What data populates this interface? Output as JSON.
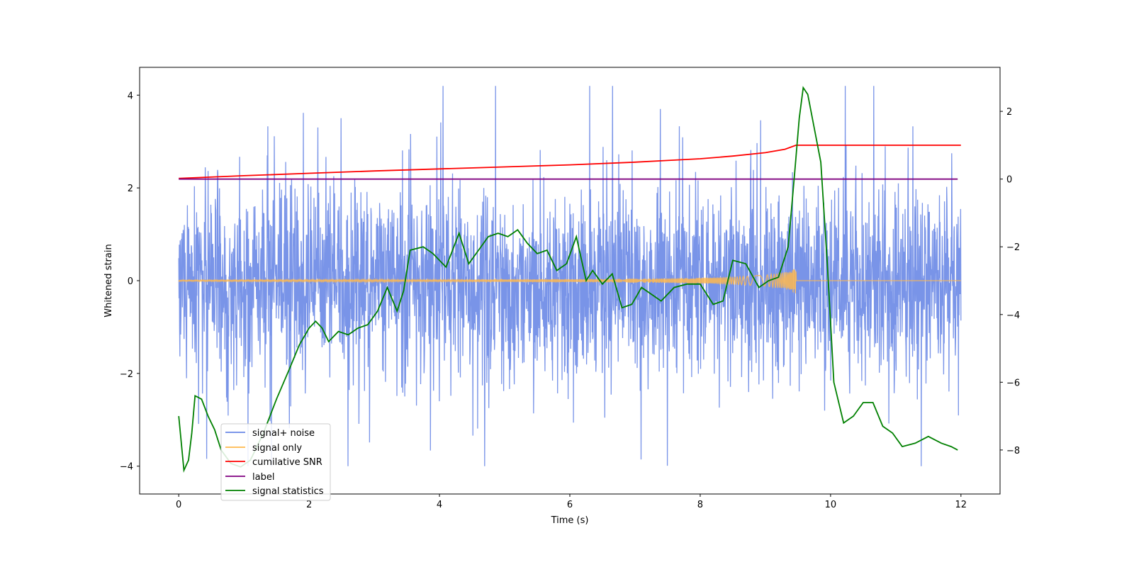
{
  "chart_data": {
    "type": "line",
    "title": "",
    "xlabel": "Time (s)",
    "ylabel": "Whitened strain",
    "y2label": "",
    "xlim": [
      -0.6,
      12.6
    ],
    "ylim": [
      -4.6,
      4.6
    ],
    "y2lim": [
      -9.3,
      3.3
    ],
    "grid": false,
    "legend_position": "lower-left",
    "x_ticks": [
      0,
      2,
      4,
      6,
      8,
      10,
      12
    ],
    "y_ticks": [
      -4,
      -2,
      0,
      2,
      4
    ],
    "y2_ticks": [
      -8,
      -6,
      -4,
      -2,
      0,
      2
    ],
    "x_tick_labels": [
      "0",
      "2",
      "4",
      "6",
      "8",
      "10",
      "12"
    ],
    "y_tick_labels": [
      "−4",
      "−2",
      "0",
      "2",
      "4"
    ],
    "y2_tick_labels": [
      "−8",
      "−6",
      "−4",
      "−2",
      "0",
      "2"
    ],
    "series": [
      {
        "name": "signal+ noise",
        "axis": "left",
        "color": "#6a88e6",
        "kind": "noise",
        "x_range": [
          0,
          12
        ],
        "approx_band": [
          -2.5,
          2.5
        ],
        "approx_extremes": [
          -4.0,
          4.2
        ]
      },
      {
        "name": "signal only",
        "axis": "left",
        "color": "#ffb84d",
        "kind": "chirp",
        "x_range": [
          0,
          12
        ],
        "merger_time": 9.47,
        "envelope_x": [
          0,
          2,
          4,
          6,
          7,
          8,
          8.5,
          9.0,
          9.3,
          9.47
        ],
        "envelope_amp": [
          0.01,
          0.015,
          0.02,
          0.03,
          0.04,
          0.06,
          0.08,
          0.12,
          0.18,
          0.28
        ]
      },
      {
        "name": "cumilative SNR",
        "axis": "right",
        "color": "#ff0000",
        "x": [
          0,
          1,
          2,
          3,
          4,
          5,
          6,
          7,
          7.5,
          8,
          8.5,
          9.0,
          9.3,
          9.47,
          10,
          12
        ],
        "values": [
          0.02,
          0.1,
          0.17,
          0.24,
          0.3,
          0.36,
          0.42,
          0.5,
          0.55,
          0.6,
          0.68,
          0.78,
          0.88,
          1.0,
          1.0,
          1.0
        ]
      },
      {
        "name": "label",
        "axis": "right",
        "color": "#800080",
        "x": [
          0,
          11.95
        ],
        "values": [
          0.0,
          0.0
        ]
      },
      {
        "name": "signal statistics",
        "axis": "right",
        "color": "#008000",
        "x": [
          0,
          0.08,
          0.15,
          0.2,
          0.25,
          0.35,
          0.45,
          0.55,
          0.65,
          0.8,
          0.95,
          1.1,
          1.3,
          1.5,
          1.7,
          1.85,
          2.0,
          2.1,
          2.2,
          2.3,
          2.45,
          2.6,
          2.75,
          2.9,
          3.05,
          3.2,
          3.35,
          3.45,
          3.55,
          3.75,
          3.9,
          4.1,
          4.3,
          4.45,
          4.6,
          4.75,
          4.9,
          5.05,
          5.2,
          5.35,
          5.5,
          5.65,
          5.8,
          5.95,
          6.1,
          6.25,
          6.35,
          6.5,
          6.65,
          6.8,
          6.95,
          7.1,
          7.25,
          7.4,
          7.6,
          7.8,
          8.0,
          8.2,
          8.35,
          8.5,
          8.7,
          8.9,
          9.05,
          9.2,
          9.35,
          9.45,
          9.52,
          9.58,
          9.65,
          9.75,
          9.85,
          9.95,
          10.05,
          10.2,
          10.35,
          10.5,
          10.65,
          10.8,
          10.95,
          11.1,
          11.3,
          11.5,
          11.7,
          11.85,
          11.95
        ],
        "values": [
          -7.0,
          -8.6,
          -8.3,
          -7.5,
          -6.4,
          -6.5,
          -7.0,
          -7.4,
          -8.0,
          -8.4,
          -8.5,
          -8.3,
          -7.5,
          -6.5,
          -5.6,
          -4.9,
          -4.4,
          -4.2,
          -4.4,
          -4.8,
          -4.5,
          -4.6,
          -4.4,
          -4.3,
          -3.9,
          -3.2,
          -3.9,
          -3.3,
          -2.1,
          -2.0,
          -2.2,
          -2.6,
          -1.6,
          -2.5,
          -2.1,
          -1.7,
          -1.6,
          -1.7,
          -1.5,
          -1.9,
          -2.2,
          -2.1,
          -2.7,
          -2.5,
          -1.7,
          -3.0,
          -2.7,
          -3.1,
          -2.8,
          -3.8,
          -3.7,
          -3.2,
          -3.4,
          -3.6,
          -3.2,
          -3.1,
          -3.1,
          -3.7,
          -3.6,
          -2.4,
          -2.5,
          -3.2,
          -3.0,
          -2.9,
          -2.0,
          0.2,
          1.8,
          2.7,
          2.5,
          1.5,
          0.5,
          -2.5,
          -6.0,
          -7.2,
          -7.0,
          -6.6,
          -6.6,
          -7.3,
          -7.5,
          -7.9,
          -7.8,
          -7.6,
          -7.8,
          -7.9,
          -8.0
        ]
      }
    ]
  }
}
